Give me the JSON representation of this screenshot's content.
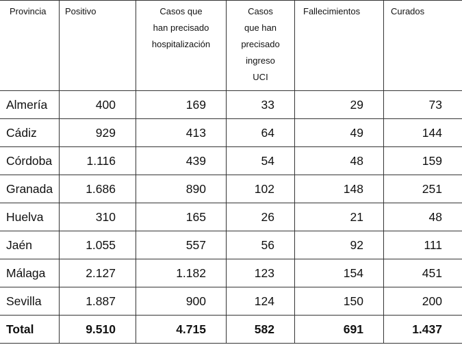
{
  "table": {
    "headers": [
      [
        "Provincia"
      ],
      [
        "Positivo"
      ],
      [
        "Casos que",
        "han precisado",
        "hospitalización"
      ],
      [
        "Casos",
        "que han",
        "precisado",
        "ingreso",
        "UCI"
      ],
      [
        "Fallecimientos"
      ],
      [
        "Curados"
      ]
    ],
    "rows": [
      [
        "Almería",
        "400",
        "169",
        "33",
        "29",
        "73"
      ],
      [
        "Cádiz",
        "929",
        "413",
        "64",
        "49",
        "144"
      ],
      [
        "Córdoba",
        "1.116",
        "439",
        "54",
        "48",
        "159"
      ],
      [
        "Granada",
        "1.686",
        "890",
        "102",
        "148",
        "251"
      ],
      [
        "Huelva",
        "310",
        "165",
        "26",
        "21",
        "48"
      ],
      [
        "Jaén",
        "1.055",
        "557",
        "56",
        "92",
        "111"
      ],
      [
        "Málaga",
        "2.127",
        "1.182",
        "123",
        "154",
        "451"
      ],
      [
        "Sevilla",
        "1.887",
        "900",
        "124",
        "150",
        "200"
      ]
    ],
    "total": [
      "Total",
      "9.510",
      "4.715",
      "582",
      "691",
      "1.437"
    ]
  }
}
